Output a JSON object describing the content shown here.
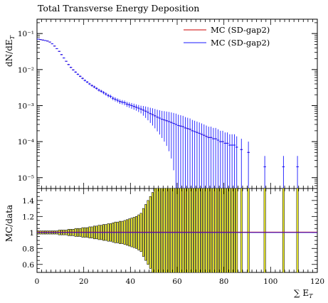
{
  "chart_data": [
    {
      "type": "scatter",
      "title": "Total Transverse Energy Deposition",
      "ylabel": "dN/dE_T",
      "xlabel": "",
      "yscale": "log",
      "ylim": [
        5e-06,
        0.25
      ],
      "xlim": [
        0,
        120
      ],
      "y_tick_labels": [
        "10⁻⁵",
        "10⁻⁴",
        "10⁻³",
        "10⁻²",
        "10⁻¹"
      ],
      "legend_position": "top-right",
      "series": [
        {
          "name": "MC (SD-gap2)",
          "color": "#cc0000",
          "x": [
            0.5,
            1.5,
            2.5,
            3.5,
            4.5,
            5.5,
            6.5,
            7.5,
            8.5,
            9.5,
            10.5,
            11.5,
            12.5,
            13.5,
            14.5,
            15.5,
            16.5,
            17.5,
            18.5,
            19.5,
            20.5,
            21.5,
            22.5,
            23.5,
            24.5,
            25.5,
            26.5,
            27.5,
            28.5,
            29.5,
            30.5,
            31.5,
            32.5,
            33.5,
            34.5,
            35.5,
            36.5,
            37.5,
            38.5,
            39.5,
            40.5,
            41.5,
            42.5,
            43.5,
            44.5,
            45.5,
            46.5,
            47.5,
            48.5,
            49.5,
            50.5,
            51.5,
            52.5,
            53.5,
            54.5,
            55.5,
            56.5,
            57.5,
            58.5,
            59.5,
            60.5,
            61.5,
            62.5,
            63.5,
            64.5,
            65.5,
            66.5,
            67.5,
            68.5,
            69.5,
            70.5,
            71.5,
            72.5,
            73.5,
            74.5,
            75.5,
            76.5,
            77.5,
            78.5,
            79.5,
            80.5,
            81.5,
            82.5,
            83.5,
            84.5,
            85.5,
            87.5,
            90.5,
            97.5,
            105.5,
            111.5
          ],
          "y": [
            0.07,
            0.068,
            0.066,
            0.064,
            0.062,
            0.058,
            0.052,
            0.045,
            0.038,
            0.032,
            0.026,
            0.021,
            0.017,
            0.0138,
            0.0115,
            0.0098,
            0.0085,
            0.0074,
            0.0065,
            0.0057,
            0.005,
            0.0045,
            0.004,
            0.0036,
            0.0033,
            0.003,
            0.0027,
            0.0025,
            0.0023,
            0.0021,
            0.0019,
            0.0018,
            0.0016,
            0.0015,
            0.0014,
            0.0013,
            0.00125,
            0.0012,
            0.0011,
            0.00105,
            0.001,
            0.00095,
            0.0009,
            0.00085,
            0.0008,
            0.00075,
            0.0007,
            0.00065,
            0.0006,
            0.00056,
            0.00052,
            0.00048,
            0.00045,
            0.00042,
            0.0004,
            0.00038,
            0.00036,
            0.00034,
            0.00032,
            0.0003,
            0.00028,
            0.00027,
            0.00026,
            0.00024,
            0.00023,
            0.00022,
            0.0002,
            0.00019,
            0.00018,
            0.00017,
            0.00016,
            0.00015,
            0.00014,
            0.00013,
            0.00013,
            0.00012,
            0.00012,
            0.00011,
            0.0001,
            0.0001,
            9e-05,
            9e-05,
            8e-05,
            8e-05,
            8e-05,
            7e-05,
            6e-05,
            5e-05,
            2e-05,
            2e-05,
            2e-05
          ]
        },
        {
          "name": "MC (SD-gap2)",
          "color": "#1a1aff",
          "x": [
            0.5,
            1.5,
            2.5,
            3.5,
            4.5,
            5.5,
            6.5,
            7.5,
            8.5,
            9.5,
            10.5,
            11.5,
            12.5,
            13.5,
            14.5,
            15.5,
            16.5,
            17.5,
            18.5,
            19.5,
            20.5,
            21.5,
            22.5,
            23.5,
            24.5,
            25.5,
            26.5,
            27.5,
            28.5,
            29.5,
            30.5,
            31.5,
            32.5,
            33.5,
            34.5,
            35.5,
            36.5,
            37.5,
            38.5,
            39.5,
            40.5,
            41.5,
            42.5,
            43.5,
            44.5,
            45.5,
            46.5,
            47.5,
            48.5,
            49.5,
            50.5,
            51.5,
            52.5,
            53.5,
            54.5,
            55.5,
            56.5,
            57.5,
            58.5,
            59.5,
            60.5,
            61.5,
            62.5,
            63.5,
            64.5,
            65.5,
            66.5,
            67.5,
            68.5,
            69.5,
            70.5,
            71.5,
            72.5,
            73.5,
            74.5,
            75.5,
            76.5,
            77.5,
            78.5,
            79.5,
            80.5,
            81.5,
            82.5,
            83.5,
            84.5,
            85.5,
            87.5,
            90.5,
            97.5,
            105.5,
            111.5
          ],
          "y": [
            0.07,
            0.068,
            0.066,
            0.064,
            0.062,
            0.058,
            0.052,
            0.045,
            0.038,
            0.032,
            0.026,
            0.021,
            0.017,
            0.0138,
            0.0115,
            0.0098,
            0.0085,
            0.0074,
            0.0065,
            0.0057,
            0.005,
            0.0045,
            0.004,
            0.0036,
            0.0033,
            0.003,
            0.0027,
            0.0025,
            0.0023,
            0.0021,
            0.0019,
            0.0018,
            0.0016,
            0.0015,
            0.0014,
            0.0013,
            0.00125,
            0.0012,
            0.0011,
            0.00105,
            0.001,
            0.00095,
            0.0009,
            0.00085,
            0.0008,
            0.00075,
            0.0007,
            0.00065,
            0.0006,
            0.00056,
            0.00052,
            0.00048,
            0.00045,
            0.00042,
            0.0004,
            0.00038,
            0.00036,
            0.00034,
            0.00032,
            0.0003,
            0.00028,
            0.00027,
            0.00026,
            0.00024,
            0.00023,
            0.00022,
            0.0002,
            0.00019,
            0.00018,
            0.00017,
            0.00016,
            0.00015,
            0.00014,
            0.00013,
            0.00013,
            0.00012,
            0.00012,
            0.00011,
            0.0001,
            0.0001,
            9e-05,
            9e-05,
            8e-05,
            8e-05,
            8e-05,
            7e-05,
            6e-05,
            5e-05,
            2e-05,
            2e-05,
            2e-05
          ],
          "y_err_rel": [
            0.02,
            0.02,
            0.02,
            0.02,
            0.02,
            0.02,
            0.02,
            0.02,
            0.02,
            0.03,
            0.03,
            0.03,
            0.03,
            0.04,
            0.04,
            0.04,
            0.05,
            0.05,
            0.05,
            0.06,
            0.06,
            0.06,
            0.07,
            0.07,
            0.08,
            0.08,
            0.09,
            0.09,
            0.1,
            0.1,
            0.11,
            0.11,
            0.12,
            0.13,
            0.13,
            0.14,
            0.14,
            0.15,
            0.16,
            0.17,
            0.18,
            0.19,
            0.2,
            0.22,
            0.24,
            0.3,
            0.35,
            0.4,
            0.45,
            0.5,
            0.55,
            0.6,
            0.65,
            0.7,
            0.75,
            0.8,
            0.85,
            0.9,
            0.95,
            1,
            1,
            1,
            1,
            1,
            1,
            1,
            1,
            1,
            1,
            1,
            1,
            1,
            1,
            1,
            1,
            1,
            1,
            1,
            1,
            1,
            1,
            1,
            1,
            1,
            1,
            1,
            1,
            1,
            1,
            1,
            1
          ]
        }
      ]
    },
    {
      "type": "bar",
      "ylabel": "MC/data",
      "xlabel": "∑ E_T",
      "ylim": [
        0.5,
        1.55
      ],
      "xlim": [
        0,
        120
      ],
      "x_ticks": [
        0,
        20,
        40,
        60,
        80,
        100,
        120
      ],
      "y_ticks": [
        0.6,
        0.8,
        1,
        1.2,
        1.4
      ],
      "band_color": "#ffff33",
      "ratio_line": 1.0
    }
  ]
}
